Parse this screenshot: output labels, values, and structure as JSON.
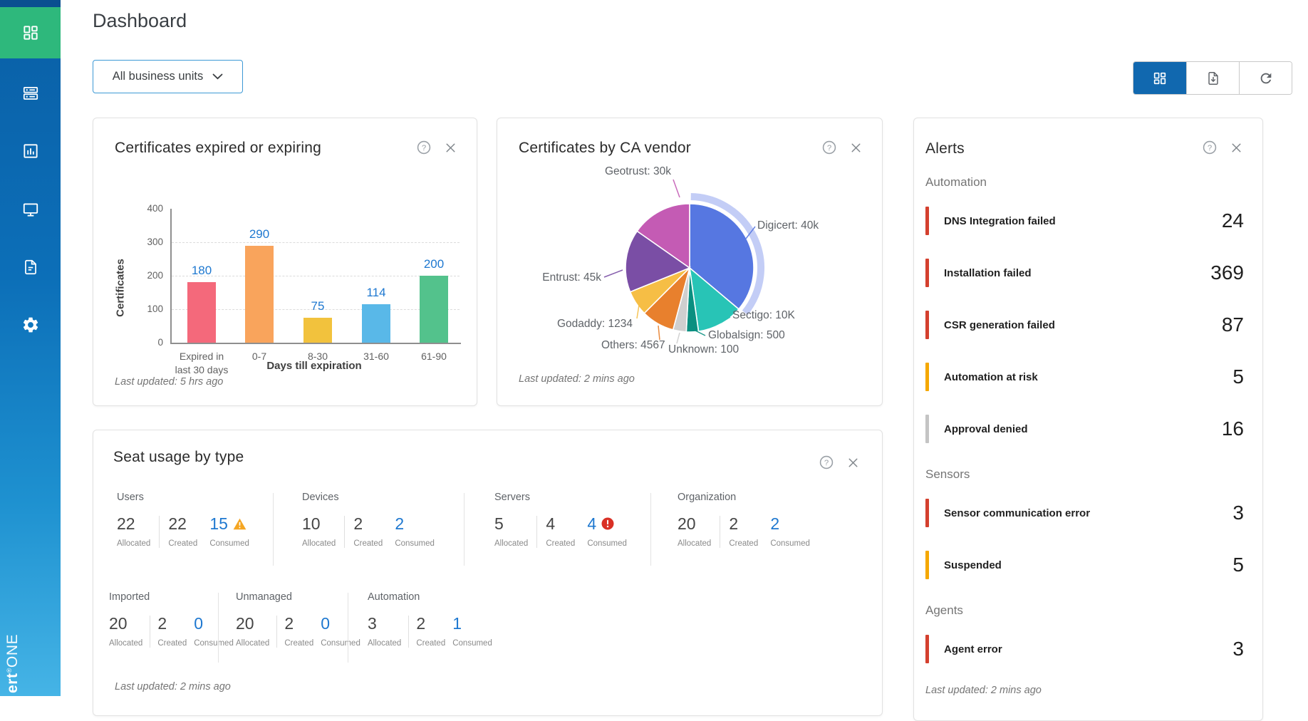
{
  "app": {
    "logo_left": "ert",
    "logo_mark": "®",
    "logo_right": "ONE"
  },
  "header": {
    "title": "Dashboard",
    "business_unit_filter": "All business units"
  },
  "toolbar": {
    "buttons": [
      {
        "icon": "grid-view-icon",
        "active": true
      },
      {
        "icon": "export-report-icon",
        "active": false
      },
      {
        "icon": "refresh-icon",
        "active": false
      }
    ]
  },
  "sidebar": {
    "items": [
      {
        "icon": "dashboard-icon",
        "active": true
      },
      {
        "icon": "inventory-icon",
        "active": false
      },
      {
        "icon": "reports-icon",
        "active": false
      },
      {
        "icon": "monitoring-icon",
        "active": false
      },
      {
        "icon": "documents-icon",
        "active": false
      },
      {
        "icon": "settings-icon",
        "active": false
      }
    ]
  },
  "cards": {
    "expiring": {
      "title": "Certificates expired or expiring",
      "footer": "Last updated: 5 hrs ago",
      "help_icon": "help-icon",
      "close_icon": "close-icon"
    },
    "vendor": {
      "title": "Certificates by CA vendor",
      "footer": "Last updated: 2 mins ago",
      "help_icon": "help-icon",
      "close_icon": "close-icon"
    },
    "alerts": {
      "title": "Alerts",
      "footer": "Last updated: 2 mins ago",
      "sections": [
        {
          "label": "Automation",
          "items": [
            {
              "label": "DNS Integration failed",
              "count": "24",
              "severity": "critical"
            },
            {
              "label": "Installation failed",
              "count": "369",
              "severity": "critical"
            },
            {
              "label": "CSR generation failed",
              "count": "87",
              "severity": "critical"
            },
            {
              "label": "Automation at risk",
              "count": "5",
              "severity": "warning"
            },
            {
              "label": "Approval denied",
              "count": "16",
              "severity": "neutral"
            }
          ]
        },
        {
          "label": "Sensors",
          "items": [
            {
              "label": "Sensor communication error",
              "count": "3",
              "severity": "critical"
            },
            {
              "label": "Suspended",
              "count": "5",
              "severity": "warning"
            }
          ]
        },
        {
          "label": "Agents",
          "items": [
            {
              "label": "Agent error",
              "count": "3",
              "severity": "critical"
            }
          ]
        }
      ]
    },
    "seats": {
      "title": "Seat usage by type",
      "footer": "Last updated: 2 mins ago",
      "stat_labels": [
        "Allocated",
        "Created",
        "Consumed"
      ],
      "rows": [
        [
          {
            "label": "Users",
            "allocated": "22",
            "created": "22",
            "consumed": "15",
            "consumed_flag": "warning"
          },
          {
            "label": "Devices",
            "allocated": "10",
            "created": "2",
            "consumed": "2",
            "consumed_flag": ""
          },
          {
            "label": "Servers",
            "allocated": "5",
            "created": "4",
            "consumed": "4",
            "consumed_flag": "error"
          },
          {
            "label": "Organization",
            "allocated": "20",
            "created": "2",
            "consumed": "2",
            "consumed_flag": ""
          }
        ],
        [
          {
            "label": "Imported",
            "allocated": "20",
            "created": "2",
            "consumed": "0",
            "consumed_flag": ""
          },
          {
            "label": "Unmanaged",
            "allocated": "20",
            "created": "2",
            "consumed": "0",
            "consumed_flag": ""
          },
          {
            "label": "Automation",
            "allocated": "3",
            "created": "2",
            "consumed": "1",
            "consumed_flag": ""
          }
        ]
      ]
    }
  },
  "chart_data": [
    {
      "type": "bar",
      "title": "Certificates expired or expiring",
      "xlabel": "Days till expiration",
      "ylabel": "Certificates",
      "ylim": [
        0,
        400
      ],
      "yticks": [
        0,
        100,
        200,
        300,
        400
      ],
      "grid": true,
      "legend": false,
      "categories": [
        "Expired in\nlast 30 days",
        "0-7",
        "8-30",
        "31-60",
        "61-90"
      ],
      "values": [
        180,
        290,
        75,
        114,
        200
      ],
      "colors": [
        "#F4697B",
        "#F9A45C",
        "#F2C23D",
        "#59B8E8",
        "#53C28C"
      ],
      "value_label_color": "#1E78D0"
    },
    {
      "type": "pie",
      "title": "Certificates by CA vendor",
      "start_angle_deg": 0,
      "label_color": "#5F6368",
      "selected_halo_color": "#9BACF0",
      "slices": [
        {
          "name": "Digicert",
          "value": "40k",
          "sweep_deg": 130,
          "color": "#5677E1",
          "selected": true
        },
        {
          "name": "Sectigo",
          "value": "10K",
          "sweep_deg": 42,
          "color": "#28C4B6",
          "selected": false
        },
        {
          "name": "Globalsign",
          "value": "500",
          "sweep_deg": 11,
          "color": "#0A8F80",
          "selected": false
        },
        {
          "name": "Unknown",
          "value": "100",
          "sweep_deg": 12,
          "color": "#CFCFCF",
          "selected": false
        },
        {
          "name": "Others",
          "value": "4567",
          "sweep_deg": 30,
          "color": "#E8802D",
          "selected": false
        },
        {
          "name": "Godaddy",
          "value": "1234",
          "sweep_deg": 23,
          "color": "#F6BE45",
          "selected": false
        },
        {
          "name": "Entrust",
          "value": "45k",
          "sweep_deg": 57,
          "color": "#7A4EA5",
          "selected": false
        },
        {
          "name": "Geotrust",
          "value": "30k",
          "sweep_deg": 55,
          "color": "#C45BB4",
          "selected": false
        }
      ]
    }
  ],
  "colors": {
    "sidebar_top": "#0A4F90",
    "sidebar_gradient_start": "#0A5FA6",
    "sidebar_gradient_end": "#45B4E6",
    "active_nav_green": "#2EB87C",
    "primary_button_blue": "#1168AF",
    "dropdown_border_blue": "#3D99D5",
    "value_blue": "#1E78D0",
    "severity_critical": "#D4402E",
    "severity_warning": "#F5A800",
    "severity_neutral": "#C4C4C4",
    "warning_icon": "#F5A623",
    "error_icon": "#D93025"
  }
}
